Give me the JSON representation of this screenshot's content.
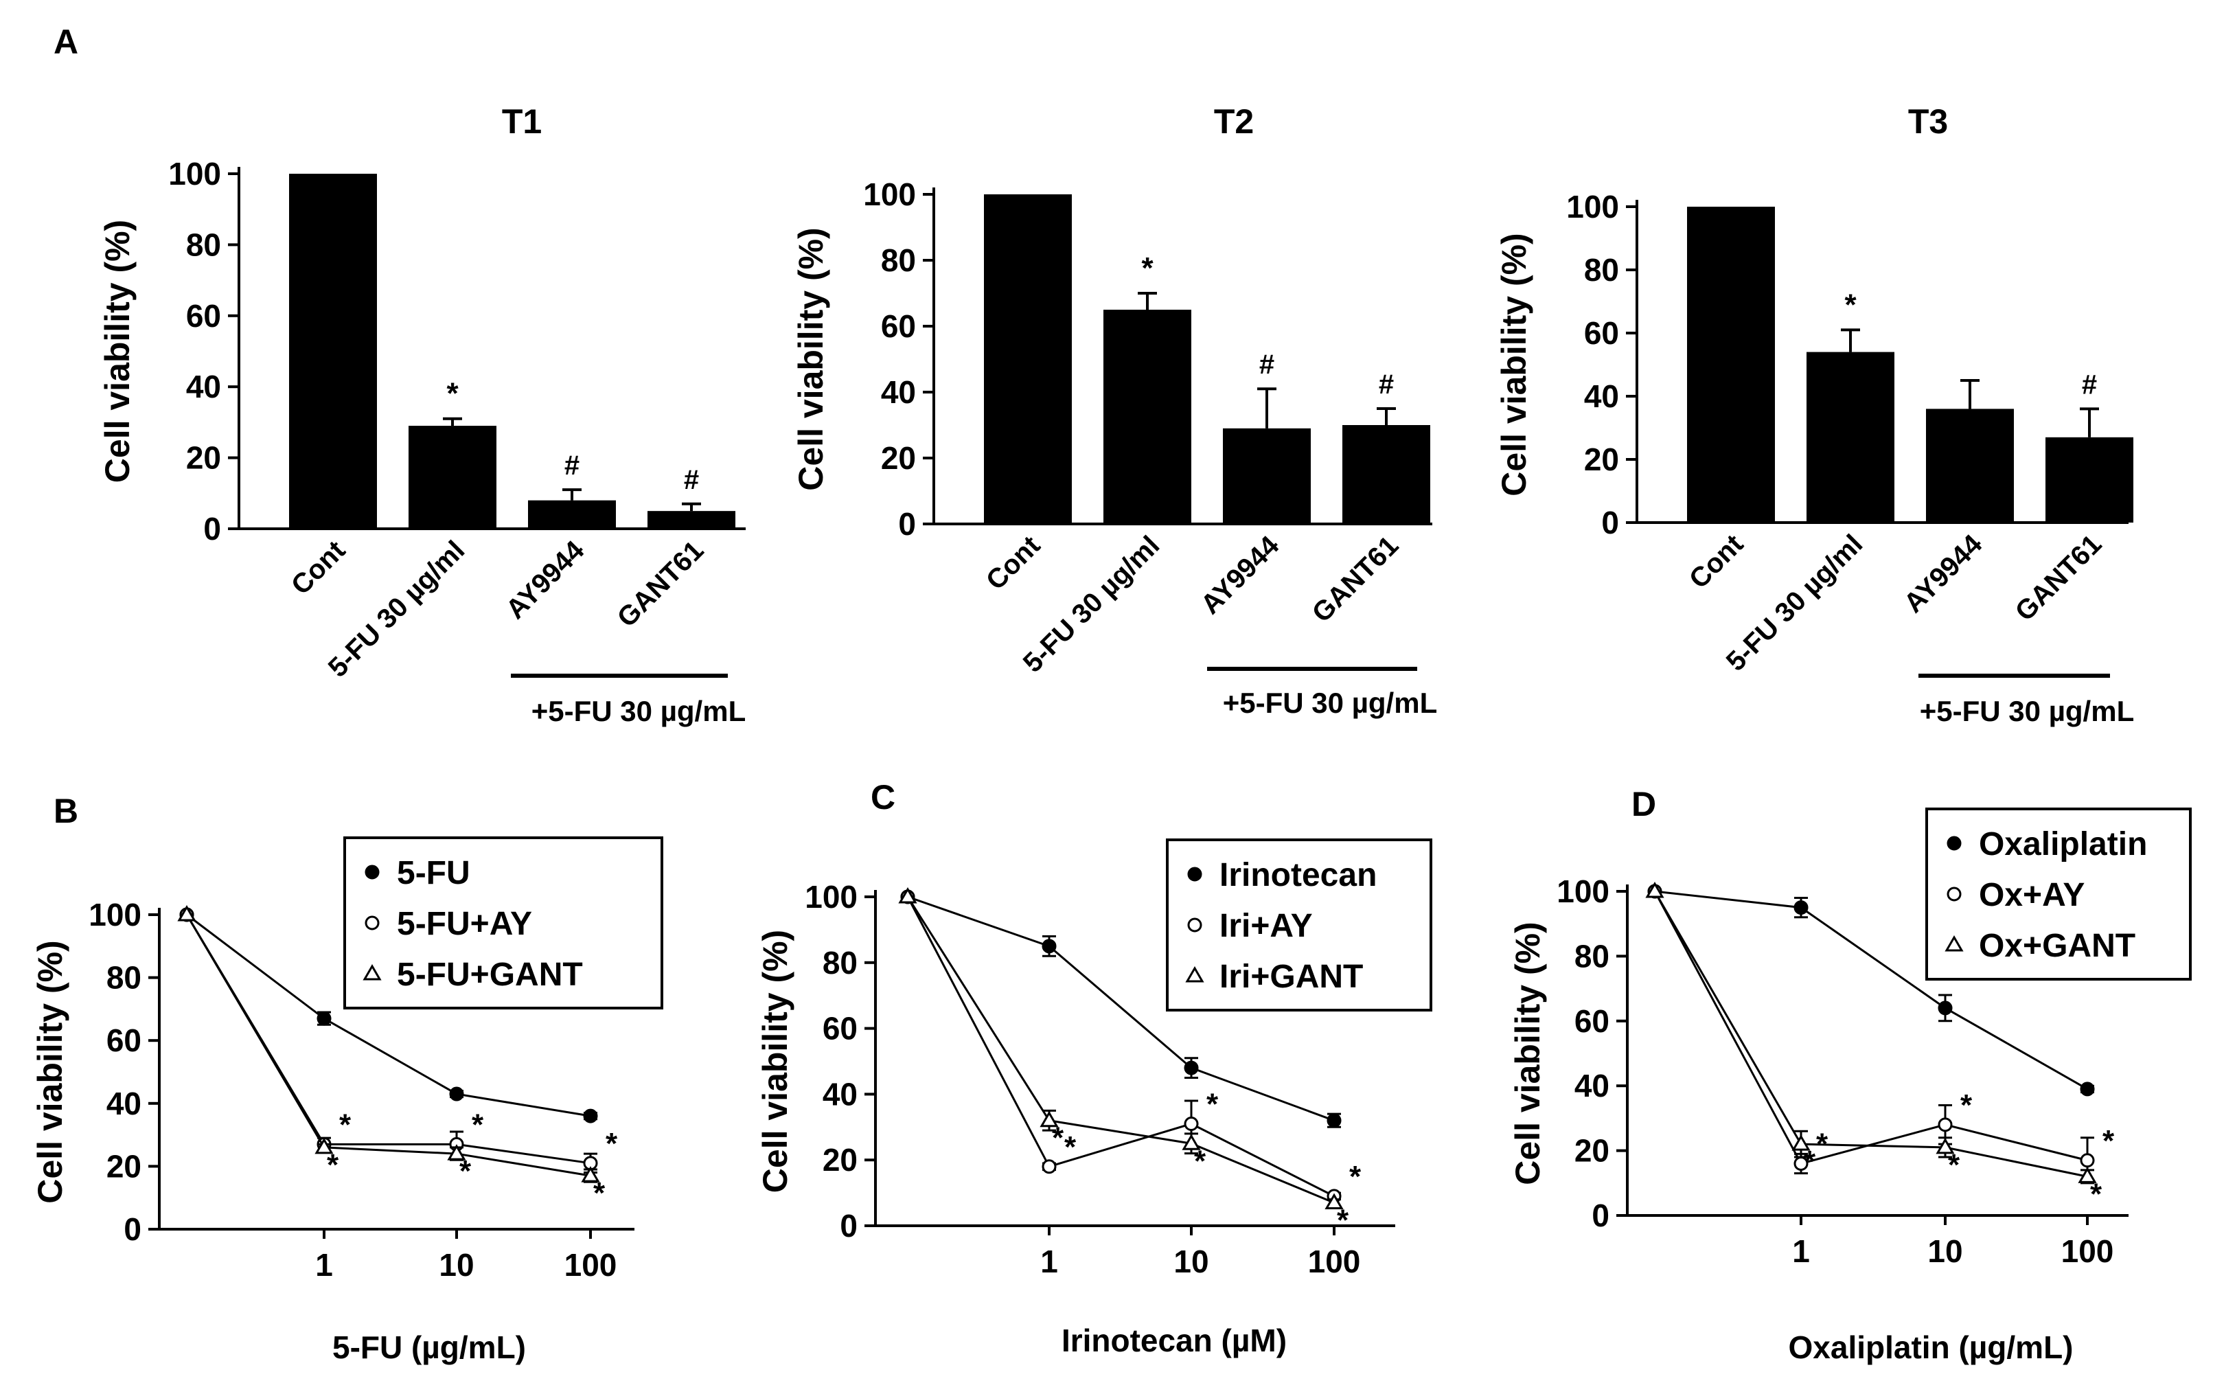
{
  "panel_labels": {
    "A": "A",
    "B": "B",
    "C": "C",
    "D": "D"
  },
  "chart_data": [
    {
      "id": "T1",
      "type": "bar",
      "title": "T1",
      "ylabel": "Cell viability (%)",
      "xlabel": "",
      "ylim": [
        0,
        100
      ],
      "yticks": [
        0,
        20,
        40,
        60,
        80,
        100
      ],
      "categories": [
        "Cont",
        "5-FU 30 µg/ml",
        "AY9944",
        "GANT61"
      ],
      "values": [
        100,
        29,
        8,
        5
      ],
      "errors": [
        0,
        2,
        3,
        2
      ],
      "annotations": [
        "",
        "*",
        "#",
        "#"
      ],
      "bracket_label": "+5-FU 30 µg/mL",
      "bar_color": "#000000"
    },
    {
      "id": "T2",
      "type": "bar",
      "title": "T2",
      "ylabel": "Cell viability (%)",
      "xlabel": "",
      "ylim": [
        0,
        100
      ],
      "yticks": [
        0,
        20,
        40,
        60,
        80,
        100
      ],
      "categories": [
        "Cont",
        "5-FU 30 µg/ml",
        "AY9944",
        "GANT61"
      ],
      "values": [
        100,
        65,
        29,
        30
      ],
      "errors": [
        0,
        5,
        12,
        5
      ],
      "annotations": [
        "",
        "*",
        "#",
        "#"
      ],
      "bracket_label": "+5-FU 30 µg/mL",
      "bar_color": "#000000"
    },
    {
      "id": "T3",
      "type": "bar",
      "title": "T3",
      "ylabel": "Cell viability (%)",
      "xlabel": "",
      "ylim": [
        0,
        100
      ],
      "yticks": [
        0,
        20,
        40,
        60,
        80,
        100
      ],
      "categories": [
        "Cont",
        "5-FU 30 µg/ml",
        "AY9944",
        "GANT61"
      ],
      "values": [
        100,
        54,
        36,
        27
      ],
      "errors": [
        0,
        7,
        9,
        9
      ],
      "annotations": [
        "",
        "*",
        "",
        "#"
      ],
      "bracket_label": "+5-FU 30 µg/mL",
      "bar_color": "#000000"
    },
    {
      "id": "B",
      "type": "line",
      "title": "",
      "ylabel": "Cell viability (%)",
      "xlabel": "5-FU (µg/mL)",
      "ylim": [
        0,
        100
      ],
      "yticks": [
        0,
        20,
        40,
        60,
        80,
        100
      ],
      "x_ticks": [
        "1",
        "10",
        "100"
      ],
      "legend_position": "top-right",
      "series": [
        {
          "name": "5-FU",
          "marker": "filled-circle",
          "values": [
            100,
            67,
            43,
            36
          ],
          "errors": [
            0,
            2,
            1,
            1
          ],
          "annotations": [
            "",
            "",
            "",
            ""
          ]
        },
        {
          "name": "5-FU+AY",
          "marker": "open-circle",
          "values": [
            100,
            27,
            27,
            21
          ],
          "errors": [
            0,
            2,
            4,
            3
          ],
          "annotations": [
            "",
            "*",
            "*",
            "*"
          ]
        },
        {
          "name": "5-FU+GANT",
          "marker": "open-triangle",
          "values": [
            100,
            26,
            24,
            17
          ],
          "errors": [
            0,
            1,
            2,
            2
          ],
          "annotations": [
            "",
            "*",
            "*",
            "*"
          ]
        }
      ]
    },
    {
      "id": "C",
      "type": "line",
      "title": "",
      "ylabel": "Cell viability (%)",
      "xlabel": "Irinotecan (µM)",
      "ylim": [
        0,
        100
      ],
      "yticks": [
        0,
        20,
        40,
        60,
        80,
        100
      ],
      "x_ticks": [
        "1",
        "10",
        "100"
      ],
      "legend_position": "top-right",
      "series": [
        {
          "name": "Irinotecan",
          "marker": "filled-circle",
          "values": [
            100,
            85,
            48,
            32
          ],
          "errors": [
            0,
            3,
            3,
            2
          ],
          "annotations": [
            "",
            "",
            "",
            ""
          ]
        },
        {
          "name": "Iri+AY",
          "marker": "open-circle",
          "values": [
            100,
            18,
            31,
            9
          ],
          "errors": [
            0,
            1,
            7,
            1
          ],
          "annotations": [
            "",
            "*",
            "*",
            "*"
          ]
        },
        {
          "name": "Iri+GANT",
          "marker": "open-triangle",
          "values": [
            100,
            32,
            25,
            7
          ],
          "errors": [
            0,
            3,
            3,
            1
          ],
          "annotations": [
            "",
            "*",
            "*",
            "*"
          ]
        }
      ]
    },
    {
      "id": "D",
      "type": "line",
      "title": "",
      "ylabel": "Cell viability (%)",
      "xlabel": "Oxaliplatin (µg/mL)",
      "ylim": [
        0,
        100
      ],
      "yticks": [
        0,
        20,
        40,
        60,
        80,
        100
      ],
      "x_ticks": [
        "1",
        "10",
        "100"
      ],
      "legend_position": "top-right",
      "series": [
        {
          "name": "Oxaliplatin",
          "marker": "filled-circle",
          "values": [
            100,
            95,
            64,
            39
          ],
          "errors": [
            0,
            3,
            4,
            1
          ],
          "annotations": [
            "",
            "",
            "",
            ""
          ]
        },
        {
          "name": "Ox+AY",
          "marker": "open-circle",
          "values": [
            100,
            16,
            28,
            17
          ],
          "errors": [
            0,
            3,
            6,
            7
          ],
          "annotations": [
            "",
            "*",
            "*",
            "*"
          ]
        },
        {
          "name": "Ox+GANT",
          "marker": "open-triangle",
          "values": [
            100,
            22,
            21,
            12
          ],
          "errors": [
            0,
            4,
            3,
            2
          ],
          "annotations": [
            "",
            "*",
            "*",
            "*"
          ]
        }
      ]
    }
  ]
}
